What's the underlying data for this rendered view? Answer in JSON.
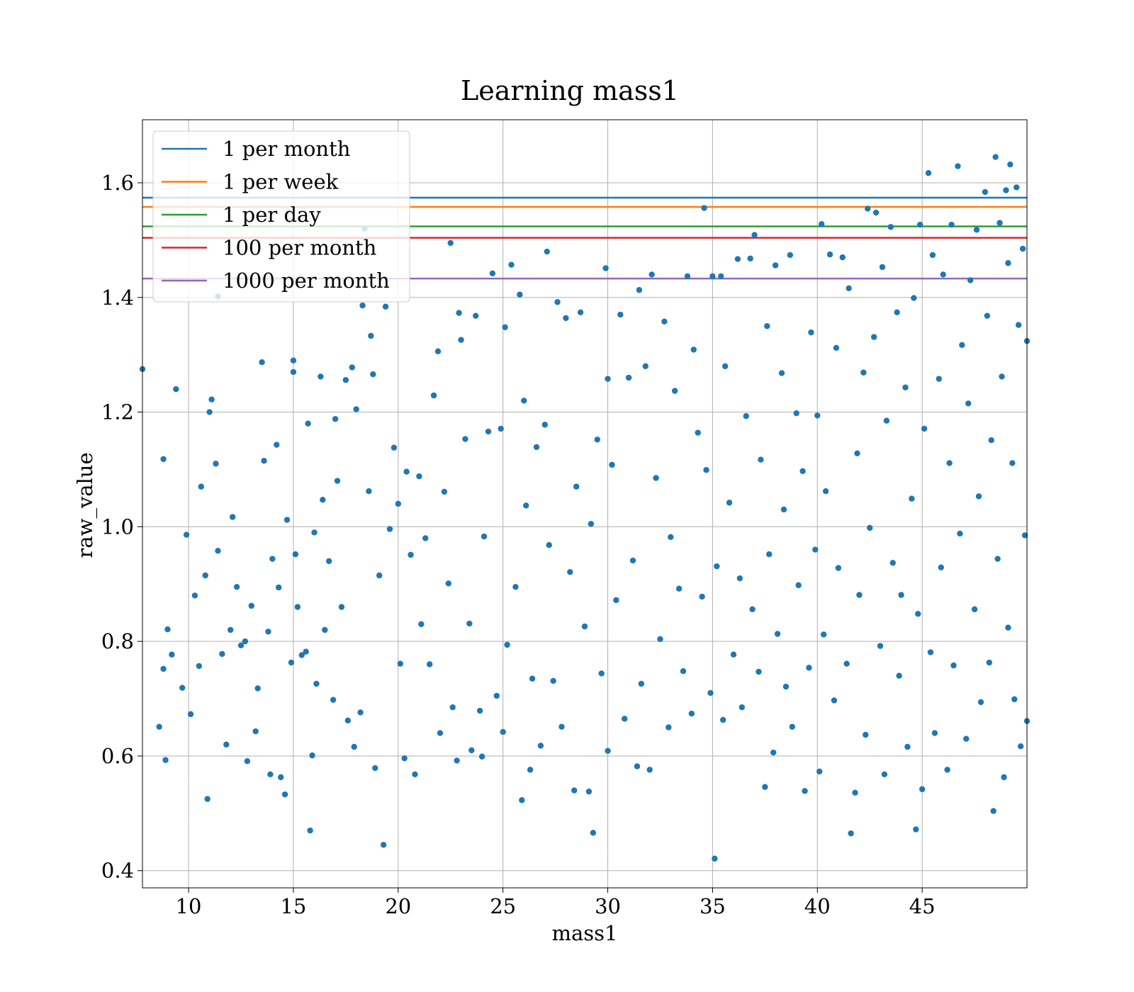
{
  "chart_data": {
    "type": "scatter",
    "title": "Learning mass1",
    "xlabel": "mass1",
    "ylabel": "raw_value",
    "xlim": [
      7.8,
      50
    ],
    "ylim": [
      0.37,
      1.71
    ],
    "xticks": [
      10,
      15,
      20,
      25,
      30,
      35,
      40,
      45
    ],
    "yticks": [
      0.4,
      0.6,
      0.8,
      1.0,
      1.2,
      1.4,
      1.6
    ],
    "ytick_labels": [
      "0.4",
      "0.6",
      "0.8",
      "1.0",
      "1.2",
      "1.4",
      "1.6"
    ],
    "grid": true,
    "legend_position": "upper-left",
    "scatter_color": "#1f77b4",
    "hlines": [
      {
        "name": "1 per month",
        "y": 1.574,
        "color": "#1f77b4"
      },
      {
        "name": "1 per week",
        "y": 1.558,
        "color": "#ff7f0e"
      },
      {
        "name": "1 per day",
        "y": 1.524,
        "color": "#2ca02c"
      },
      {
        "name": "100 per month",
        "y": 1.504,
        "color": "#d62728"
      },
      {
        "name": "1000 per month",
        "y": 1.433,
        "color": "#9467bd"
      }
    ],
    "series": [
      {
        "points": [
          [
            7.8,
            1.275
          ],
          [
            8.6,
            0.651
          ],
          [
            8.8,
            1.118
          ],
          [
            8.8,
            0.752
          ],
          [
            8.9,
            0.593
          ],
          [
            9.0,
            0.821
          ],
          [
            9.2,
            0.777
          ],
          [
            9.4,
            1.24
          ],
          [
            9.7,
            0.719
          ],
          [
            9.9,
            0.986
          ],
          [
            10.1,
            0.673
          ],
          [
            10.3,
            0.88
          ],
          [
            10.5,
            0.757
          ],
          [
            10.6,
            1.07
          ],
          [
            10.8,
            0.915
          ],
          [
            10.9,
            0.525
          ],
          [
            11.0,
            1.2
          ],
          [
            11.1,
            1.222
          ],
          [
            11.3,
            1.11
          ],
          [
            11.4,
            1.402
          ],
          [
            11.4,
            0.958
          ],
          [
            11.6,
            0.778
          ],
          [
            11.8,
            0.62
          ],
          [
            12.0,
            0.82
          ],
          [
            12.1,
            1.017
          ],
          [
            12.3,
            0.895
          ],
          [
            12.5,
            0.793
          ],
          [
            12.7,
            0.8
          ],
          [
            12.8,
            0.591
          ],
          [
            13.0,
            0.862
          ],
          [
            13.2,
            0.643
          ],
          [
            13.3,
            0.718
          ],
          [
            13.5,
            1.287
          ],
          [
            13.6,
            1.115
          ],
          [
            13.8,
            0.817
          ],
          [
            13.9,
            0.568
          ],
          [
            14.0,
            0.944
          ],
          [
            14.2,
            1.143
          ],
          [
            14.3,
            0.894
          ],
          [
            14.4,
            0.563
          ],
          [
            14.6,
            0.533
          ],
          [
            14.7,
            1.012
          ],
          [
            14.9,
            0.763
          ],
          [
            15.0,
            1.29
          ],
          [
            15.0,
            1.27
          ],
          [
            15.1,
            0.952
          ],
          [
            15.2,
            0.86
          ],
          [
            15.4,
            0.776
          ],
          [
            15.6,
            0.782
          ],
          [
            15.7,
            1.18
          ],
          [
            15.8,
            0.47
          ],
          [
            15.9,
            0.601
          ],
          [
            16.0,
            0.99
          ],
          [
            16.1,
            0.726
          ],
          [
            16.3,
            1.262
          ],
          [
            16.4,
            1.047
          ],
          [
            16.5,
            0.82
          ],
          [
            16.7,
            0.94
          ],
          [
            16.9,
            0.698
          ],
          [
            17.0,
            1.188
          ],
          [
            17.1,
            1.08
          ],
          [
            17.3,
            0.86
          ],
          [
            17.5,
            1.256
          ],
          [
            17.6,
            0.662
          ],
          [
            17.8,
            1.278
          ],
          [
            17.9,
            0.616
          ],
          [
            18.0,
            1.205
          ],
          [
            18.2,
            0.676
          ],
          [
            18.3,
            1.386
          ],
          [
            18.4,
            1.52
          ],
          [
            18.6,
            1.062
          ],
          [
            18.7,
            1.333
          ],
          [
            18.8,
            1.266
          ],
          [
            18.9,
            0.579
          ],
          [
            19.1,
            0.915
          ],
          [
            19.3,
            0.445
          ],
          [
            19.4,
            1.384
          ],
          [
            19.6,
            0.996
          ],
          [
            19.8,
            1.138
          ],
          [
            20.0,
            1.04
          ],
          [
            20.1,
            0.761
          ],
          [
            20.3,
            0.596
          ],
          [
            20.4,
            1.096
          ],
          [
            20.6,
            0.951
          ],
          [
            20.8,
            0.568
          ],
          [
            21.0,
            1.088
          ],
          [
            21.1,
            0.83
          ],
          [
            21.3,
            0.98
          ],
          [
            21.5,
            0.76
          ],
          [
            21.7,
            1.229
          ],
          [
            21.9,
            1.306
          ],
          [
            22.0,
            0.64
          ],
          [
            22.2,
            1.061
          ],
          [
            22.4,
            0.901
          ],
          [
            22.5,
            1.495
          ],
          [
            22.6,
            0.685
          ],
          [
            22.8,
            0.592
          ],
          [
            22.9,
            1.373
          ],
          [
            23.0,
            1.326
          ],
          [
            23.2,
            1.153
          ],
          [
            23.4,
            0.831
          ],
          [
            23.5,
            0.61
          ],
          [
            23.7,
            1.368
          ],
          [
            23.9,
            0.679
          ],
          [
            24.0,
            0.599
          ],
          [
            24.1,
            0.983
          ],
          [
            24.3,
            1.166
          ],
          [
            24.5,
            1.442
          ],
          [
            24.7,
            0.705
          ],
          [
            24.9,
            1.171
          ],
          [
            25.0,
            0.642
          ],
          [
            25.1,
            1.348
          ],
          [
            25.2,
            0.794
          ],
          [
            25.4,
            1.457
          ],
          [
            25.6,
            0.895
          ],
          [
            25.8,
            1.405
          ],
          [
            25.9,
            0.523
          ],
          [
            26.0,
            1.22
          ],
          [
            26.1,
            1.037
          ],
          [
            26.3,
            0.576
          ],
          [
            26.4,
            0.735
          ],
          [
            26.6,
            1.139
          ],
          [
            26.8,
            0.618
          ],
          [
            27.0,
            1.178
          ],
          [
            27.1,
            1.48
          ],
          [
            27.2,
            0.968
          ],
          [
            27.4,
            0.731
          ],
          [
            27.6,
            1.392
          ],
          [
            27.8,
            0.651
          ],
          [
            28.0,
            1.364
          ],
          [
            28.2,
            0.921
          ],
          [
            28.4,
            0.54
          ],
          [
            28.5,
            1.07
          ],
          [
            28.7,
            1.374
          ],
          [
            28.9,
            0.826
          ],
          [
            29.1,
            0.538
          ],
          [
            29.2,
            1.005
          ],
          [
            29.3,
            0.466
          ],
          [
            29.5,
            1.152
          ],
          [
            29.7,
            0.744
          ],
          [
            29.9,
            1.451
          ],
          [
            30.0,
            0.609
          ],
          [
            30.0,
            1.258
          ],
          [
            30.2,
            1.108
          ],
          [
            30.4,
            0.872
          ],
          [
            30.6,
            1.37
          ],
          [
            30.8,
            0.665
          ],
          [
            31.0,
            1.26
          ],
          [
            31.2,
            0.941
          ],
          [
            31.4,
            0.582
          ],
          [
            31.5,
            1.413
          ],
          [
            31.6,
            0.726
          ],
          [
            31.8,
            1.28
          ],
          [
            32.0,
            0.576
          ],
          [
            32.1,
            1.44
          ],
          [
            32.3,
            1.085
          ],
          [
            32.5,
            0.804
          ],
          [
            32.7,
            1.358
          ],
          [
            32.9,
            0.65
          ],
          [
            33.0,
            0.982
          ],
          [
            33.2,
            1.237
          ],
          [
            33.4,
            0.892
          ],
          [
            33.6,
            0.748
          ],
          [
            33.8,
            1.437
          ],
          [
            34.0,
            0.674
          ],
          [
            34.1,
            1.309
          ],
          [
            34.3,
            1.164
          ],
          [
            34.5,
            0.878
          ],
          [
            34.6,
            1.556
          ],
          [
            34.7,
            1.099
          ],
          [
            34.9,
            0.71
          ],
          [
            35.0,
            1.437
          ],
          [
            35.1,
            0.421
          ],
          [
            35.2,
            0.931
          ],
          [
            35.4,
            1.437
          ],
          [
            35.5,
            0.663
          ],
          [
            35.6,
            1.28
          ],
          [
            35.8,
            1.042
          ],
          [
            36.0,
            0.777
          ],
          [
            36.2,
            1.467
          ],
          [
            36.3,
            0.91
          ],
          [
            36.4,
            0.685
          ],
          [
            36.6,
            1.193
          ],
          [
            36.8,
            1.468
          ],
          [
            36.9,
            0.856
          ],
          [
            37.0,
            1.509
          ],
          [
            37.2,
            0.747
          ],
          [
            37.3,
            1.117
          ],
          [
            37.5,
            0.546
          ],
          [
            37.6,
            1.35
          ],
          [
            37.7,
            0.952
          ],
          [
            37.9,
            0.606
          ],
          [
            38.0,
            1.456
          ],
          [
            38.1,
            0.813
          ],
          [
            38.3,
            1.268
          ],
          [
            38.4,
            1.03
          ],
          [
            38.5,
            0.721
          ],
          [
            38.7,
            1.474
          ],
          [
            38.8,
            0.651
          ],
          [
            39.0,
            1.198
          ],
          [
            39.1,
            0.898
          ],
          [
            39.3,
            1.097
          ],
          [
            39.4,
            0.539
          ],
          [
            39.6,
            0.754
          ],
          [
            39.7,
            1.339
          ],
          [
            39.9,
            0.96
          ],
          [
            40.0,
            1.194
          ],
          [
            40.1,
            0.573
          ],
          [
            40.2,
            1.528
          ],
          [
            40.3,
            0.812
          ],
          [
            40.4,
            1.062
          ],
          [
            40.6,
            1.475
          ],
          [
            40.8,
            0.697
          ],
          [
            40.9,
            1.312
          ],
          [
            41.0,
            0.928
          ],
          [
            41.2,
            1.47
          ],
          [
            41.4,
            0.761
          ],
          [
            41.5,
            1.416
          ],
          [
            41.6,
            0.465
          ],
          [
            41.8,
            0.536
          ],
          [
            41.9,
            1.128
          ],
          [
            42.0,
            0.881
          ],
          [
            42.2,
            1.269
          ],
          [
            42.3,
            0.637
          ],
          [
            42.4,
            1.555
          ],
          [
            42.5,
            0.998
          ],
          [
            42.7,
            1.331
          ],
          [
            42.8,
            1.548
          ],
          [
            43.0,
            0.792
          ],
          [
            43.1,
            1.453
          ],
          [
            43.2,
            0.568
          ],
          [
            43.3,
            1.185
          ],
          [
            43.5,
            1.523
          ],
          [
            43.6,
            0.937
          ],
          [
            43.8,
            1.374
          ],
          [
            43.9,
            0.74
          ],
          [
            44.0,
            0.881
          ],
          [
            44.2,
            1.243
          ],
          [
            44.3,
            0.616
          ],
          [
            44.5,
            1.049
          ],
          [
            44.6,
            1.399
          ],
          [
            44.7,
            0.472
          ],
          [
            44.8,
            0.848
          ],
          [
            44.9,
            1.527
          ],
          [
            45.0,
            0.542
          ],
          [
            45.1,
            1.171
          ],
          [
            45.3,
            1.617
          ],
          [
            45.4,
            0.781
          ],
          [
            45.5,
            1.474
          ],
          [
            45.6,
            0.64
          ],
          [
            45.8,
            1.258
          ],
          [
            45.9,
            0.929
          ],
          [
            46.0,
            1.44
          ],
          [
            46.2,
            0.576
          ],
          [
            46.3,
            1.111
          ],
          [
            46.4,
            1.527
          ],
          [
            46.5,
            0.758
          ],
          [
            46.7,
            1.629
          ],
          [
            46.8,
            0.988
          ],
          [
            46.9,
            1.317
          ],
          [
            47.1,
            0.63
          ],
          [
            47.2,
            1.215
          ],
          [
            47.3,
            1.43
          ],
          [
            47.5,
            0.856
          ],
          [
            47.6,
            1.518
          ],
          [
            47.7,
            1.053
          ],
          [
            47.8,
            0.694
          ],
          [
            48.0,
            1.584
          ],
          [
            48.1,
            1.368
          ],
          [
            48.2,
            0.763
          ],
          [
            48.3,
            1.151
          ],
          [
            48.4,
            0.504
          ],
          [
            48.5,
            1.645
          ],
          [
            48.6,
            0.944
          ],
          [
            48.7,
            1.53
          ],
          [
            48.8,
            1.262
          ],
          [
            48.9,
            0.563
          ],
          [
            49.0,
            1.587
          ],
          [
            49.1,
            1.46
          ],
          [
            49.1,
            0.824
          ],
          [
            49.2,
            1.632
          ],
          [
            49.3,
            1.111
          ],
          [
            49.4,
            0.699
          ],
          [
            49.5,
            1.592
          ],
          [
            49.6,
            1.352
          ],
          [
            49.7,
            0.617
          ],
          [
            49.8,
            1.485
          ],
          [
            49.9,
            0.985
          ],
          [
            50.0,
            1.324
          ],
          [
            50.0,
            0.661
          ]
        ]
      }
    ]
  }
}
